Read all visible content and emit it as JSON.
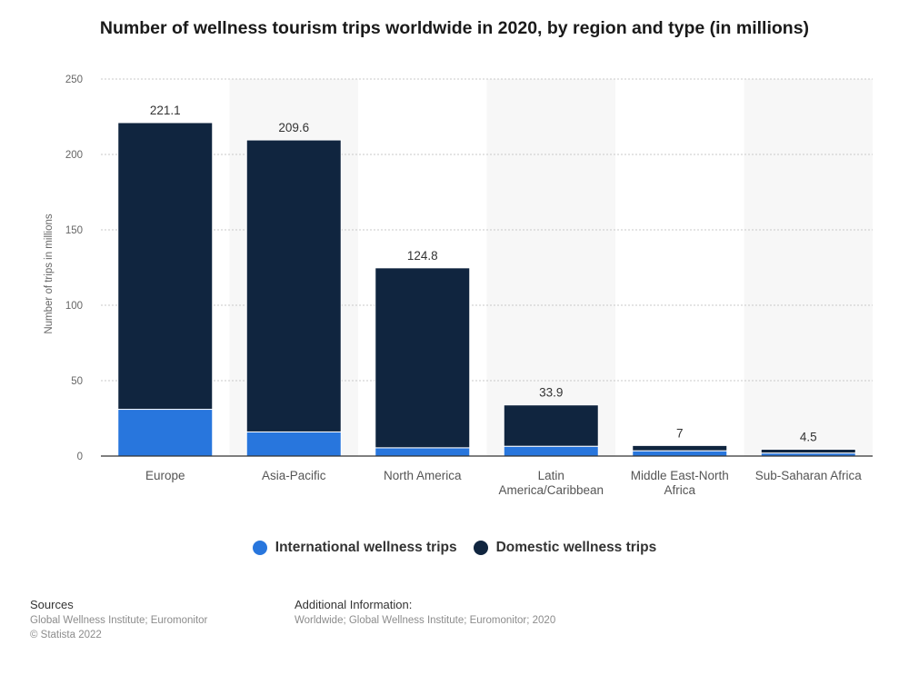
{
  "chart_data": {
    "type": "bar",
    "stacked": true,
    "title": "Number of wellness tourism trips worldwide in 2020, by region and type (in millions)",
    "xlabel": "",
    "ylabel": "Number of trips in millions",
    "ylim": [
      0,
      250
    ],
    "yticks": [
      0,
      50,
      100,
      150,
      200,
      250
    ],
    "grid": true,
    "legend_position": "bottom",
    "categories": [
      [
        "Europe"
      ],
      [
        "Asia-Pacific"
      ],
      [
        "North America"
      ],
      [
        "Latin",
        "America/Caribbean"
      ],
      [
        "Middle East-North",
        "Africa"
      ],
      [
        "Sub-Saharan Africa"
      ]
    ],
    "series": [
      {
        "name": "International wellness trips",
        "color": "#2876dd",
        "values": [
          31,
          16,
          5.5,
          6.5,
          3.5,
          2
        ]
      },
      {
        "name": "Domestic wellness trips",
        "color": "#10253f",
        "values": [
          190.1,
          193.6,
          119.3,
          27.4,
          3.5,
          2.5
        ]
      }
    ],
    "totals": [
      "221.1",
      "209.6",
      "124.8",
      "33.9",
      "7",
      "4.5"
    ]
  },
  "footer": {
    "sources_heading": "Sources",
    "sources_line": "Global Wellness Institute; Euromonitor",
    "copyright": "© Statista 2022",
    "additional_heading": "Additional Information:",
    "additional_line": "Worldwide; Global Wellness Institute; Euromonitor; 2020"
  }
}
